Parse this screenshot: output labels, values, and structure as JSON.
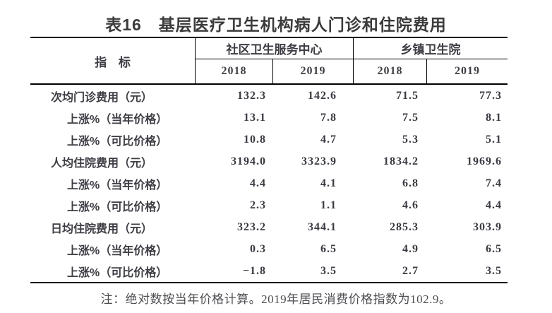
{
  "title": "表16　基层医疗卫生机构病人门诊和住院费用",
  "table": {
    "indicator_header": "指 标",
    "groups": [
      {
        "label": "社区卫生服务中心",
        "years": [
          "2018",
          "2019"
        ]
      },
      {
        "label": "乡镇卫生院",
        "years": [
          "2018",
          "2019"
        ]
      }
    ],
    "rows": [
      {
        "label": "次均门诊费用（元）",
        "indent": 0,
        "values": [
          "132.3",
          "142.6",
          "71.5",
          "77.3"
        ]
      },
      {
        "label": "上涨%（当年价格）",
        "indent": 1,
        "values": [
          "13.1",
          "7.8",
          "7.5",
          "8.1"
        ]
      },
      {
        "label": "上涨%（可比价格）",
        "indent": 1,
        "values": [
          "10.8",
          "4.7",
          "5.3",
          "5.1"
        ]
      },
      {
        "label": "人均住院费用（元）",
        "indent": 0,
        "values": [
          "3194.0",
          "3323.9",
          "1834.2",
          "1969.6"
        ]
      },
      {
        "label": "上涨%（当年价格）",
        "indent": 1,
        "values": [
          "4.4",
          "4.1",
          "6.8",
          "7.4"
        ]
      },
      {
        "label": "上涨%（可比价格）",
        "indent": 1,
        "values": [
          "2.3",
          "1.1",
          "4.6",
          "4.4"
        ]
      },
      {
        "label": "日均住院费用（元）",
        "indent": 0,
        "values": [
          "323.2",
          "344.1",
          "285.3",
          "303.9"
        ]
      },
      {
        "label": "上涨%（当年价格）",
        "indent": 1,
        "values": [
          "0.3",
          "6.5",
          "4.9",
          "6.5"
        ]
      },
      {
        "label": "上涨%（可比价格）",
        "indent": 1,
        "values": [
          "−1.8",
          "3.5",
          "2.7",
          "3.5"
        ]
      }
    ]
  },
  "note": "注：绝对数按当年价格计算。2019年居民消费价格指数为102.9。",
  "colors": {
    "text": "#3d3d44",
    "border": "#000000",
    "note_text": "#4e4e52",
    "background": "#ffffff"
  },
  "chart_data": {
    "type": "table",
    "title": "表16　基层医疗卫生机构病人门诊和住院费用",
    "columns": [
      "指标",
      "社区卫生服务中心 2018",
      "社区卫生服务中心 2019",
      "乡镇卫生院 2018",
      "乡镇卫生院 2019"
    ],
    "rows": [
      [
        "次均门诊费用（元）",
        132.3,
        142.6,
        71.5,
        77.3
      ],
      [
        "上涨%（当年价格）",
        13.1,
        7.8,
        7.5,
        8.1
      ],
      [
        "上涨%（可比价格）",
        10.8,
        4.7,
        5.3,
        5.1
      ],
      [
        "人均住院费用（元）",
        3194.0,
        3323.9,
        1834.2,
        1969.6
      ],
      [
        "上涨%（当年价格）",
        4.4,
        4.1,
        6.8,
        7.4
      ],
      [
        "上涨%（可比价格）",
        2.3,
        1.1,
        4.6,
        4.4
      ],
      [
        "日均住院费用（元）",
        323.2,
        344.1,
        285.3,
        303.9
      ],
      [
        "上涨%（当年价格）",
        0.3,
        6.5,
        4.9,
        6.5
      ],
      [
        "上涨%（可比价格）",
        -1.8,
        3.5,
        2.7,
        3.5
      ]
    ],
    "footnote": "注：绝对数按当年价格计算。2019年居民消费价格指数为102.9。"
  }
}
